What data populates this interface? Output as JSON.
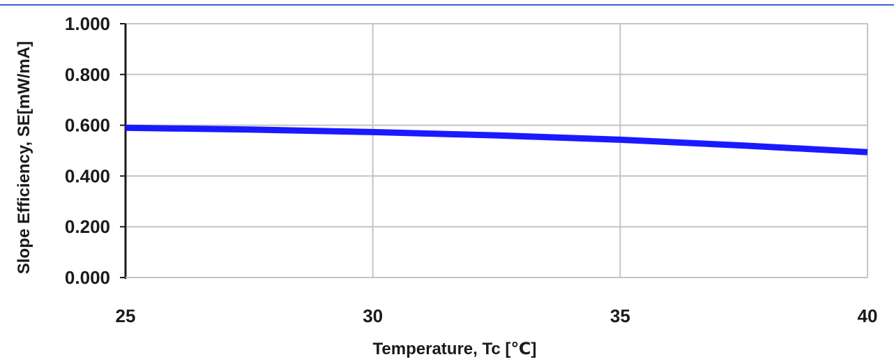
{
  "chart_data": {
    "type": "line",
    "title": "",
    "xlabel": "Temperature, Tc [℃]",
    "ylabel": "Slope Efficiency, SE[mW/mA]",
    "xlim": [
      25,
      40
    ],
    "ylim": [
      0.0,
      1.0
    ],
    "x_ticks": [
      "25",
      "30",
      "35",
      "40"
    ],
    "x_tick_values": [
      25,
      30,
      35,
      40
    ],
    "y_ticks": [
      "1.000",
      "0.800",
      "0.600",
      "0.400",
      "0.200",
      "0.000"
    ],
    "y_tick_values": [
      1.0,
      0.8,
      0.6,
      0.4,
      0.2,
      0.0
    ],
    "grid": true,
    "series": [
      {
        "color": "#1a1aff",
        "x": [
          25,
          27.5,
          30,
          32.5,
          35,
          37.5,
          40
        ],
        "y": [
          0.59,
          0.583,
          0.573,
          0.56,
          0.543,
          0.52,
          0.494
        ]
      }
    ]
  },
  "colors": {
    "line": "#1a1aff",
    "grid": "#c4c4c4",
    "axis": "#1a1a1a",
    "header_rule": "#3a5fcd"
  }
}
